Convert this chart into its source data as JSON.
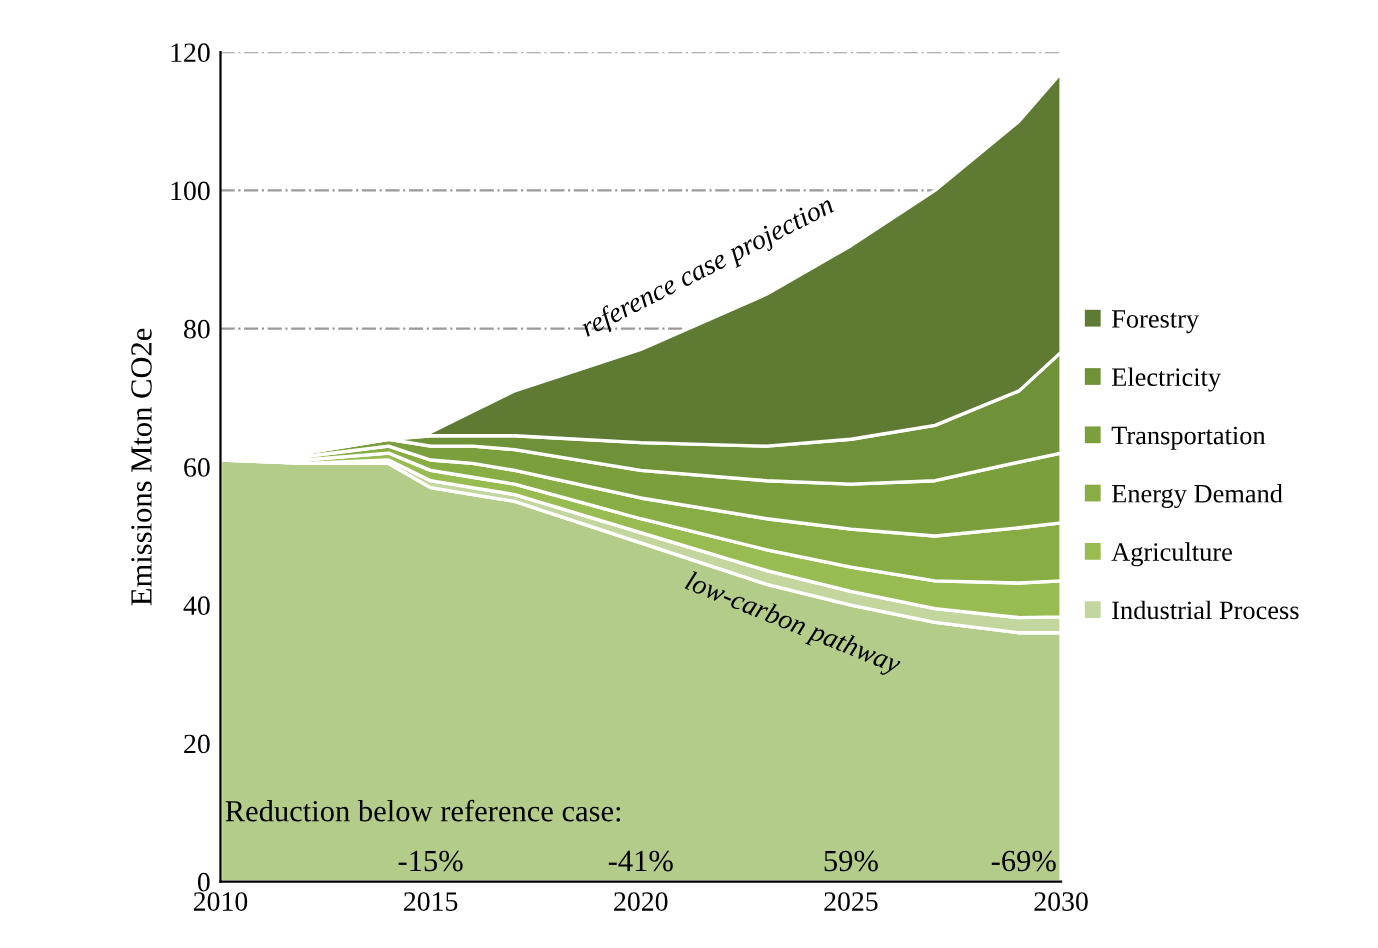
{
  "chart_data": {
    "type": "area",
    "stacked": true,
    "ylabel": "Emissions Mton CO2e",
    "x": [
      2010,
      2012,
      2014,
      2015,
      2016,
      2017,
      2020,
      2023,
      2025,
      2027,
      2029,
      2030
    ],
    "series": [
      {
        "color": "#b3cc8a",
        "values": [
          61,
          60.5,
          60.5,
          57,
          56,
          55,
          49,
          43,
          40,
          37.5,
          36,
          36
        ]
      },
      {
        "name": "Industrial Process",
        "color": "#c2d69e",
        "values": [
          0,
          0,
          0.5,
          1,
          1,
          1,
          1.5,
          2,
          2,
          2,
          2.2,
          2.3
        ]
      },
      {
        "name": "Agriculture",
        "color": "#98bb52",
        "values": [
          0,
          0.5,
          1,
          1.5,
          1.5,
          1.5,
          2,
          3,
          3.5,
          4,
          5,
          5.2
        ]
      },
      {
        "name": "Energy Demand",
        "color": "#88ad44",
        "values": [
          0,
          0.5,
          1,
          1.5,
          2,
          2,
          3,
          4.5,
          5.5,
          6.5,
          8,
          8.4
        ]
      },
      {
        "name": "Transportation",
        "color": "#7b9f3c",
        "values": [
          0,
          0.5,
          1,
          2,
          2.5,
          3,
          4,
          5.5,
          6.5,
          8,
          9.5,
          10.1
        ]
      },
      {
        "name": "Electricity",
        "color": "#6f9137",
        "values": [
          0,
          0,
          0,
          1.5,
          1.5,
          2,
          4,
          5,
          6.5,
          8,
          10.3,
          14.6
        ]
      },
      {
        "name": "Forestry",
        "color": "#5e7a33",
        "values": [
          0,
          0,
          0,
          0.5,
          3.5,
          6.5,
          13.5,
          22,
          28,
          34,
          39,
          40.4
        ]
      }
    ],
    "xlim": [
      2010,
      2030
    ],
    "xticks": [
      2010,
      2015,
      2020,
      2025,
      2030
    ],
    "ylim": [
      0,
      120
    ],
    "yticks": [
      0,
      20,
      40,
      60,
      80,
      100,
      120
    ],
    "grid": "y",
    "legend": "right",
    "annotations": [
      "reference case projection",
      "low-carbon pathway",
      "Reduction below reference case:",
      "-15%",
      "-41%",
      "59%",
      "-69%"
    ]
  }
}
